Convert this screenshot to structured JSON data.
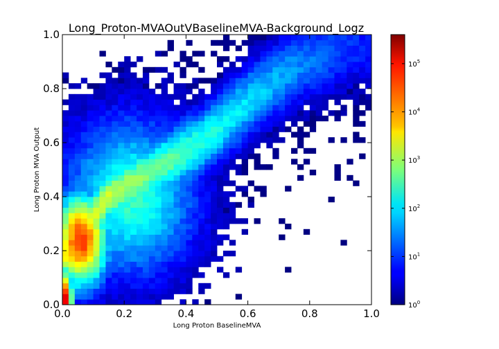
{
  "chart_data": {
    "type": "heatmap",
    "title": "Long_Proton-MVAOutVBaselineMVA-Background_Logz",
    "xlabel": "Long Proton BaselineMVA",
    "ylabel": "Long Proton MVA Output",
    "xlim": [
      0.0,
      1.0
    ],
    "ylim": [
      0.0,
      1.0
    ],
    "x_ticks": [
      "0.0",
      "0.2",
      "0.4",
      "0.6",
      "0.8",
      "1.0"
    ],
    "y_ticks": [
      "0.0",
      "0.2",
      "0.4",
      "0.6",
      "0.8",
      "1.0"
    ],
    "bins": [
      50,
      50
    ],
    "color_scale": "log",
    "colormap": "jet",
    "zlim": [
      1,
      400000
    ],
    "colorbar_ticks": [
      {
        "base": "10",
        "exp": "0",
        "value": 1
      },
      {
        "base": "10",
        "exp": "1",
        "value": 10
      },
      {
        "base": "10",
        "exp": "2",
        "value": 100
      },
      {
        "base": "10",
        "exp": "3",
        "value": 1000
      },
      {
        "base": "10",
        "exp": "4",
        "value": 10000
      },
      {
        "base": "10",
        "exp": "5",
        "value": 100000
      }
    ],
    "grid": false,
    "density_model": {
      "description_of_distribution": "dense core near x=0.05-0.1, y=0.1-0.35; ridge toward x~0.35,y~0.5 and upper-right; sparse speckle elsewhere",
      "peak_count": 400000,
      "core": {
        "x": 0.05,
        "y": 0.22,
        "count": 30000
      },
      "ridge_points": [
        {
          "x": 0.05,
          "y": 0.25
        },
        {
          "x": 0.15,
          "y": 0.4
        },
        {
          "x": 0.3,
          "y": 0.5
        },
        {
          "x": 0.45,
          "y": 0.6
        },
        {
          "x": 0.6,
          "y": 0.75
        },
        {
          "x": 0.75,
          "y": 0.88
        },
        {
          "x": 0.95,
          "y": 0.96
        }
      ]
    }
  }
}
